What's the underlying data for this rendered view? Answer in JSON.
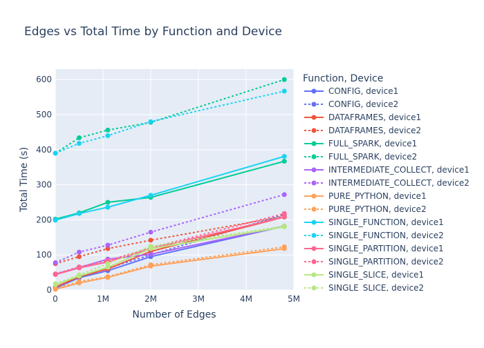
{
  "chart_data": {
    "type": "line",
    "title": "Edges vs Total Time by Function and Device",
    "xlabel": "Number of Edges",
    "ylabel": "Total Time (s)",
    "xlim": [
      0,
      5000000
    ],
    "ylim": [
      0,
      630
    ],
    "xticks": [
      0,
      1000000,
      2000000,
      3000000,
      4000000,
      5000000
    ],
    "xtick_labels": [
      "0",
      "1M",
      "2M",
      "3M",
      "4M",
      "5M"
    ],
    "yticks": [
      0,
      100,
      200,
      300,
      400,
      500,
      600
    ],
    "ytick_labels": [
      "0",
      "100",
      "200",
      "300",
      "400",
      "500",
      "600"
    ],
    "grid": true,
    "legend": {
      "title": "Function, Device",
      "placement": "right"
    },
    "x": [
      2000,
      500000,
      1100000,
      2000000,
      4800000
    ],
    "series": [
      {
        "name": "CONFIG, device1",
        "color": "#636efa",
        "dash": "solid",
        "values": [
          5,
          35,
          55,
          95,
          182
        ]
      },
      {
        "name": "CONFIG, device2",
        "color": "#636efa",
        "dash": "dot",
        "values": [
          8,
          38,
          62,
          100,
          215
        ]
      },
      {
        "name": "DATAFRAMES, device1",
        "color": "#ef553b",
        "dash": "solid",
        "values": [
          8,
          38,
          60,
          110,
          208
        ]
      },
      {
        "name": "DATAFRAMES, device2",
        "color": "#ef553b",
        "dash": "dot",
        "values": [
          75,
          95,
          118,
          142,
          210
        ]
      },
      {
        "name": "FULL_SPARK, device1",
        "color": "#00cc96",
        "dash": "solid",
        "values": [
          202,
          220,
          250,
          264,
          367
        ]
      },
      {
        "name": "FULL_SPARK, device2",
        "color": "#00cc96",
        "dash": "dot",
        "values": [
          390,
          434,
          456,
          478,
          600
        ]
      },
      {
        "name": "INTERMEDIATE_COLLECT, device1",
        "color": "#ab63fa",
        "dash": "solid",
        "values": [
          45,
          64,
          88,
          102,
          182
        ]
      },
      {
        "name": "INTERMEDIATE_COLLECT, device2",
        "color": "#ab63fa",
        "dash": "dot",
        "values": [
          78,
          108,
          128,
          165,
          272
        ]
      },
      {
        "name": "PURE_PYTHON, device1",
        "color": "#ffa15a",
        "dash": "solid",
        "values": [
          2,
          20,
          36,
          68,
          118
        ]
      },
      {
        "name": "PURE_PYTHON, device2",
        "color": "#ffa15a",
        "dash": "dot",
        "values": [
          4,
          24,
          38,
          72,
          123
        ]
      },
      {
        "name": "SINGLE_FUNCTION, device1",
        "color": "#19d3f3",
        "dash": "solid",
        "values": [
          199,
          218,
          236,
          270,
          381
        ]
      },
      {
        "name": "SINGLE_FUNCTION, device2",
        "color": "#19d3f3",
        "dash": "dot",
        "values": [
          390,
          418,
          440,
          480,
          567
        ]
      },
      {
        "name": "SINGLE_PARTITION, device1",
        "color": "#ff6692",
        "dash": "solid",
        "values": [
          44,
          63,
          80,
          118,
          208
        ]
      },
      {
        "name": "SINGLE_PARTITION, device2",
        "color": "#ff6692",
        "dash": "dot",
        "values": [
          46,
          66,
          84,
          120,
          218
        ]
      },
      {
        "name": "SINGLE_SLICE, device1",
        "color": "#b6e880",
        "dash": "solid",
        "values": [
          15,
          40,
          65,
          118,
          180
        ]
      },
      {
        "name": "SINGLE_SLICE, device2",
        "color": "#b6e880",
        "dash": "dot",
        "values": [
          18,
          43,
          75,
          125,
          182
        ]
      }
    ]
  }
}
